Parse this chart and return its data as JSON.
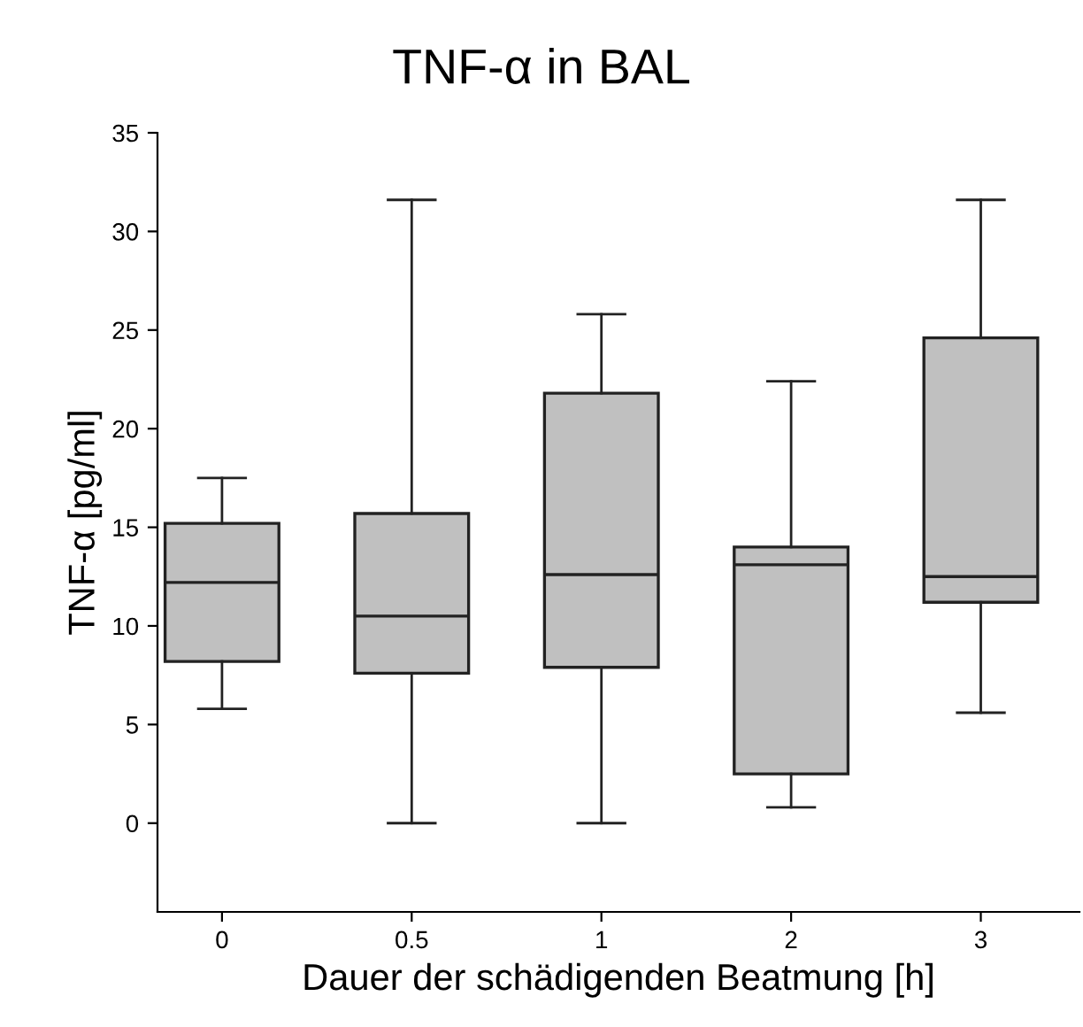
{
  "chart_data": {
    "type": "box",
    "title": "TNF-α in BAL",
    "xlabel": "Dauer der schädigenden Beatmung [h]",
    "ylabel": "TNF-α [pg/ml]",
    "categories": [
      "0",
      "0.5",
      "1",
      "2",
      "3"
    ],
    "boxes": [
      {
        "low": 5.8,
        "q1": 8.2,
        "median": 12.2,
        "q3": 15.2,
        "high": 17.5
      },
      {
        "low": 0,
        "q1": 7.6,
        "median": 10.5,
        "q3": 15.7,
        "high": 31.6
      },
      {
        "low": 0,
        "q1": 7.9,
        "median": 12.6,
        "q3": 21.8,
        "high": 25.8
      },
      {
        "low": 0.8,
        "q1": 2.5,
        "median": 13.1,
        "q3": 14.0,
        "high": 22.4
      },
      {
        "low": 5.6,
        "q1": 11.2,
        "median": 12.5,
        "q3": 24.6,
        "high": 31.6
      }
    ],
    "color": "#c0c0c0",
    "ylim": [
      -4.5,
      35
    ],
    "yticks": [
      0,
      5,
      10,
      15,
      20,
      25,
      30,
      35
    ],
    "grid": false
  }
}
